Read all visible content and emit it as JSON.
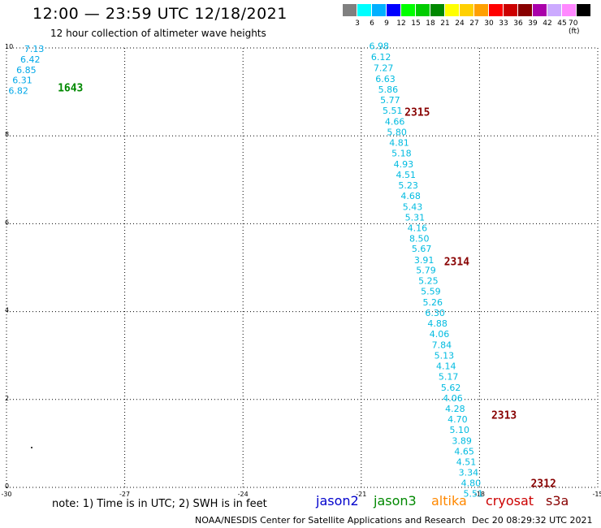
{
  "header": {
    "title": "12:00 — 23:59 UTC 12/18/2021",
    "subtitle": "12 hour collection of altimeter wave heights"
  },
  "colorbar": {
    "colors": [
      "#808080",
      "#00ffff",
      "#00b0ff",
      "#0000ff",
      "#00ff00",
      "#00cc00",
      "#008800",
      "#ffff00",
      "#ffd000",
      "#ffa000",
      "#ff0000",
      "#cc0000",
      "#880000",
      "#aa00aa",
      "#ccaaff",
      "#ff88ff",
      "#000000"
    ],
    "labels": [
      "3",
      "6",
      "9",
      "12",
      "15",
      "18",
      "21",
      "24",
      "27",
      "30",
      "33",
      "36",
      "39",
      "42",
      "45",
      "70 (ft)"
    ]
  },
  "map": {
    "lon_ticks": [
      "-30",
      "-27",
      "-24",
      "-21",
      "-18",
      "-15"
    ],
    "lat_ticks": [
      "0",
      "2",
      "4",
      "6",
      "8",
      "10"
    ],
    "lon_range": [
      -30,
      -15
    ],
    "lat_range": [
      0,
      10
    ],
    "grid": "dotted",
    "satellite_colors": {
      "jason2": "#0000cc",
      "jason3": "#008800",
      "altika": "#ff8800",
      "cryosat": "#cc0000",
      "s3a": "#880000"
    },
    "pass_labels": [
      {
        "text": "1643",
        "lon": -28.7,
        "lat": 9.1,
        "satellite": "jason3"
      },
      {
        "text": "2315",
        "lon": -19.9,
        "lat": 8.55,
        "satellite": "s3a"
      },
      {
        "text": "2314",
        "lon": -18.9,
        "lat": 5.15,
        "satellite": "s3a"
      },
      {
        "text": "2313",
        "lon": -17.7,
        "lat": 1.65,
        "satellite": "s3a"
      },
      {
        "text": "2312",
        "lon": -16.7,
        "lat": 0.1,
        "satellite": "s3a"
      }
    ],
    "track_west": [
      {
        "v": "7.13",
        "lon": -29.55,
        "lat": 9.98
      },
      {
        "v": "6.42",
        "lon": -29.65,
        "lat": 9.74
      },
      {
        "v": "6.85",
        "lon": -29.75,
        "lat": 9.5
      },
      {
        "v": "6.31",
        "lon": -29.85,
        "lat": 9.27
      },
      {
        "v": "6.82",
        "lon": -29.95,
        "lat": 9.03
      }
    ],
    "track_east": [
      {
        "v": "6.98",
        "lon": -20.8,
        "lat": 10.05
      },
      {
        "v": "6.12",
        "lon": -20.75,
        "lat": 9.8
      },
      {
        "v": "7.27",
        "lon": -20.69,
        "lat": 9.55
      },
      {
        "v": "6.63",
        "lon": -20.64,
        "lat": 9.3
      },
      {
        "v": "5.86",
        "lon": -20.57,
        "lat": 9.06
      },
      {
        "v": "5.77",
        "lon": -20.52,
        "lat": 8.82
      },
      {
        "v": "5.51",
        "lon": -20.46,
        "lat": 8.58
      },
      {
        "v": "4.66",
        "lon": -20.4,
        "lat": 8.33
      },
      {
        "v": "5.80",
        "lon": -20.35,
        "lat": 8.09
      },
      {
        "v": "4.81",
        "lon": -20.29,
        "lat": 7.85
      },
      {
        "v": "5.18",
        "lon": -20.23,
        "lat": 7.61
      },
      {
        "v": "4.93",
        "lon": -20.18,
        "lat": 7.36
      },
      {
        "v": "4.51",
        "lon": -20.12,
        "lat": 7.12
      },
      {
        "v": "5.23",
        "lon": -20.06,
        "lat": 6.88
      },
      {
        "v": "4.68",
        "lon": -20.0,
        "lat": 6.64
      },
      {
        "v": "5.43",
        "lon": -19.95,
        "lat": 6.39
      },
      {
        "v": "5.31",
        "lon": -19.89,
        "lat": 6.15
      },
      {
        "v": "4.16",
        "lon": -19.83,
        "lat": 5.91
      },
      {
        "v": "8.50",
        "lon": -19.78,
        "lat": 5.67
      },
      {
        "v": "5.67",
        "lon": -19.72,
        "lat": 5.43
      },
      {
        "v": "3.91",
        "lon": -19.66,
        "lat": 5.18
      },
      {
        "v": "5.79",
        "lon": -19.61,
        "lat": 4.94
      },
      {
        "v": "5.25",
        "lon": -19.55,
        "lat": 4.7
      },
      {
        "v": "5.59",
        "lon": -19.49,
        "lat": 4.46
      },
      {
        "v": "5.26",
        "lon": -19.44,
        "lat": 4.21
      },
      {
        "v": "6.30",
        "lon": -19.38,
        "lat": 3.97
      },
      {
        "v": "4.88",
        "lon": -19.32,
        "lat": 3.73
      },
      {
        "v": "4.06",
        "lon": -19.27,
        "lat": 3.49
      },
      {
        "v": "7.84",
        "lon": -19.21,
        "lat": 3.24
      },
      {
        "v": "5.13",
        "lon": -19.15,
        "lat": 3.0
      },
      {
        "v": "4.14",
        "lon": -19.1,
        "lat": 2.76
      },
      {
        "v": "5.17",
        "lon": -19.04,
        "lat": 2.52
      },
      {
        "v": "5.62",
        "lon": -18.98,
        "lat": 2.27
      },
      {
        "v": "4.06",
        "lon": -18.93,
        "lat": 2.03
      },
      {
        "v": "4.28",
        "lon": -18.87,
        "lat": 1.79
      },
      {
        "v": "4.70",
        "lon": -18.81,
        "lat": 1.55
      },
      {
        "v": "5.10",
        "lon": -18.76,
        "lat": 1.31
      },
      {
        "v": "3.89",
        "lon": -18.7,
        "lat": 1.06
      },
      {
        "v": "4.65",
        "lon": -18.64,
        "lat": 0.82
      },
      {
        "v": "4.51",
        "lon": -18.59,
        "lat": 0.58
      },
      {
        "v": "3.34",
        "lon": -18.53,
        "lat": 0.34
      },
      {
        "v": "4.80",
        "lon": -18.47,
        "lat": 0.1
      },
      {
        "v": "5.51",
        "lon": -18.41,
        "lat": -0.14
      }
    ]
  },
  "legend": {
    "note": "note: 1) Time is in UTC; 2) SWH is in feet",
    "items": [
      {
        "label": "jason2",
        "color": "#0000cc"
      },
      {
        "label": "jason3",
        "color": "#008800"
      },
      {
        "label": "altika",
        "color": "#ff8800"
      },
      {
        "label": "cryosat",
        "color": "#cc0000"
      },
      {
        "label": "s3a",
        "color": "#880000"
      }
    ]
  },
  "footer": {
    "credit": "NOAA/NESDIS Center for Satellite Applications and Research",
    "generated": "Dec 20 08:29:32 UTC 2021"
  }
}
